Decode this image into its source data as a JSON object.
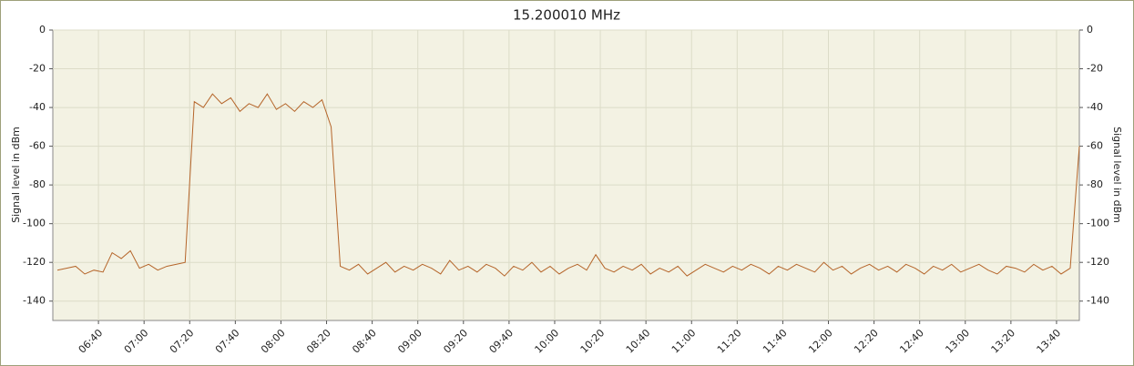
{
  "chart_data": {
    "type": "line",
    "title": "15.200010 MHz",
    "y_label": "Signal level in dBm",
    "y2_label": "Signal level in dBm",
    "x": [
      "06:22",
      "06:26",
      "06:30",
      "06:34",
      "06:38",
      "06:42",
      "06:46",
      "06:50",
      "06:54",
      "06:58",
      "07:02",
      "07:06",
      "07:10",
      "07:14",
      "07:18",
      "07:22",
      "07:26",
      "07:30",
      "07:34",
      "07:38",
      "07:42",
      "07:46",
      "07:50",
      "07:54",
      "07:58",
      "08:02",
      "08:06",
      "08:10",
      "08:14",
      "08:18",
      "08:22",
      "08:26",
      "08:30",
      "08:34",
      "08:38",
      "08:42",
      "08:46",
      "08:50",
      "08:54",
      "08:58",
      "09:02",
      "09:06",
      "09:10",
      "09:14",
      "09:18",
      "09:22",
      "09:26",
      "09:30",
      "09:34",
      "09:38",
      "09:42",
      "09:46",
      "09:50",
      "09:54",
      "09:58",
      "10:02",
      "10:06",
      "10:10",
      "10:14",
      "10:18",
      "10:22",
      "10:26",
      "10:30",
      "10:34",
      "10:38",
      "10:42",
      "10:46",
      "10:50",
      "10:54",
      "10:58",
      "11:02",
      "11:06",
      "11:10",
      "11:14",
      "11:18",
      "11:22",
      "11:26",
      "11:30",
      "11:34",
      "11:38",
      "11:42",
      "11:46",
      "11:50",
      "11:54",
      "11:58",
      "12:02",
      "12:06",
      "12:10",
      "12:14",
      "12:18",
      "12:22",
      "12:26",
      "12:30",
      "12:34",
      "12:38",
      "12:42",
      "12:46",
      "12:50",
      "12:54",
      "12:58",
      "13:02",
      "13:06",
      "13:10",
      "13:14",
      "13:18",
      "13:22",
      "13:26",
      "13:30",
      "13:34",
      "13:38",
      "13:42",
      "13:46",
      "13:50"
    ],
    "series": [
      {
        "name": "15.200010 MHz",
        "color": "#b5652a",
        "values": [
          -124,
          -123,
          -122,
          -126,
          -124,
          -125,
          -115,
          -118,
          -114,
          -123,
          -121,
          -124,
          -122,
          -121,
          -120,
          -37,
          -40,
          -33,
          -38,
          -35,
          -42,
          -38,
          -40,
          -33,
          -41,
          -38,
          -42,
          -37,
          -40,
          -36,
          -50,
          -122,
          -124,
          -121,
          -126,
          -123,
          -120,
          -125,
          -122,
          -124,
          -121,
          -123,
          -126,
          -119,
          -124,
          -122,
          -125,
          -121,
          -123,
          -127,
          -122,
          -124,
          -120,
          -125,
          -122,
          -126,
          -123,
          -121,
          -124,
          -116,
          -123,
          -125,
          -122,
          -124,
          -121,
          -126,
          -123,
          -125,
          -122,
          -127,
          -124,
          -121,
          -123,
          -125,
          -122,
          -124,
          -121,
          -123,
          -126,
          -122,
          -124,
          -121,
          -123,
          -125,
          -120,
          -124,
          -122,
          -126,
          -123,
          -121,
          -124,
          -122,
          -125,
          -121,
          -123,
          -126,
          -122,
          -124,
          -121,
          -125,
          -123,
          -121,
          -124,
          -126,
          -122,
          -123,
          -125,
          -121,
          -124,
          -122,
          -126,
          -123,
          -60
        ]
      }
    ],
    "xlim": [
      "06:20",
      "13:50"
    ],
    "xticks": [
      "06:40",
      "07:00",
      "07:20",
      "07:40",
      "08:00",
      "08:20",
      "08:40",
      "09:00",
      "09:20",
      "09:40",
      "10:00",
      "10:20",
      "10:40",
      "11:00",
      "11:20",
      "11:40",
      "12:00",
      "12:20",
      "12:40",
      "13:00",
      "13:20",
      "13:40"
    ],
    "ylim": [
      -150,
      0
    ],
    "yticks": [
      0,
      -20,
      -40,
      -60,
      -80,
      -100,
      -120,
      -140
    ],
    "y2lim": [
      -150,
      0
    ],
    "y2ticks": [
      0,
      -20,
      -40,
      -60,
      -80,
      -100,
      -120,
      -140
    ],
    "grid": true
  }
}
